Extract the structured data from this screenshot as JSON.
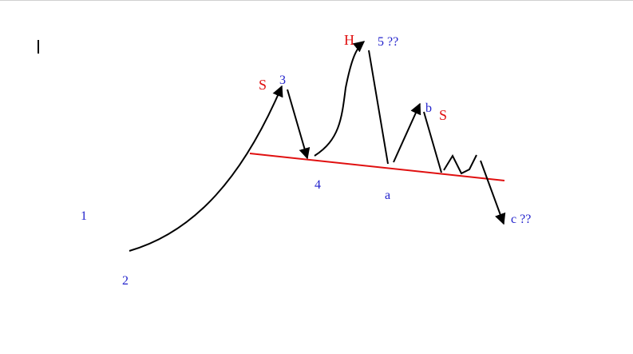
{
  "diagram": {
    "labels": {
      "wave_1": "1",
      "wave_2": "2",
      "wave_3": "3",
      "wave_4": "4",
      "wave_5": "5 ??",
      "wave_a": "a",
      "wave_b": "b",
      "wave_c": "c ??",
      "left_shoulder": "S",
      "head": "H",
      "right_shoulder": "S"
    },
    "colors": {
      "wave_label": "#2222cc",
      "pattern_label": "#e01010",
      "neckline": "#e01010",
      "path": "#000000"
    }
  }
}
